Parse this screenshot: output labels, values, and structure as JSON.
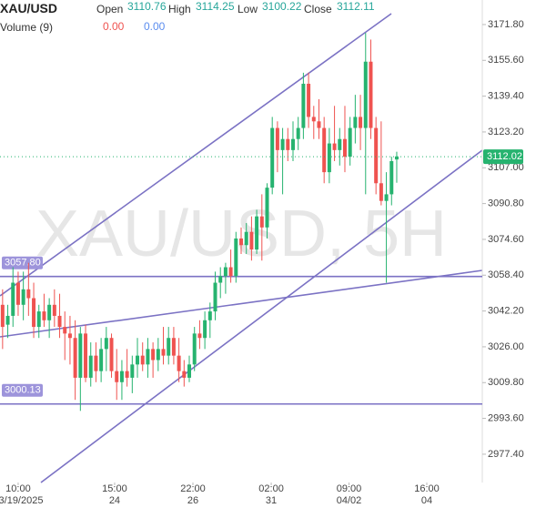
{
  "chart_data": {
    "type": "candlestick",
    "symbol": "XAU/USD",
    "watermark": "XAU/USD, 5H",
    "legend": {
      "open": "Open",
      "high": "High",
      "low": "Low",
      "close": "Close",
      "volume": "Volume (9)",
      "volume_values": [
        "0.00",
        "0.00"
      ]
    },
    "up_color": "#26b36f",
    "down_color": "#ef5350",
    "open": [
      3045,
      3036,
      3040,
      3055,
      3045,
      3052,
      3048,
      3035,
      3042,
      3038,
      3045,
      3040,
      3035,
      3032,
      3030,
      3012,
      3032,
      3012,
      3022,
      3015,
      3025,
      3030,
      3015,
      3010,
      3015,
      3012,
      3018,
      3022,
      3018,
      3025,
      3020,
      3025,
      3022,
      3030,
      3022,
      3015,
      3012,
      3018,
      3032,
      3030,
      3038,
      3042,
      3055,
      3058,
      3062,
      3058,
      3075,
      3072,
      3078,
      3070,
      3085,
      3080,
      3098,
      3125,
      3115,
      3120,
      3115,
      3120,
      3125,
      3145,
      3130,
      3128,
      3125,
      3105,
      3118,
      3115,
      3120,
      3112,
      3125,
      3130,
      3125,
      3155,
      3125,
      3100,
      3092,
      3095,
      3110.76
    ],
    "high": [
      3052,
      3045,
      3062,
      3060,
      3060,
      3064,
      3055,
      3045,
      3050,
      3048,
      3052,
      3050,
      3042,
      3040,
      3038,
      3035,
      3036,
      3028,
      3028,
      3030,
      3035,
      3032,
      3025,
      3020,
      3025,
      3022,
      3030,
      3028,
      3030,
      3028,
      3030,
      3035,
      3035,
      3035,
      3030,
      3020,
      3022,
      3035,
      3038,
      3042,
      3046,
      3060,
      3062,
      3064,
      3070,
      3078,
      3080,
      3082,
      3085,
      3088,
      3095,
      3100,
      3130,
      3128,
      3125,
      3125,
      3128,
      3130,
      3150,
      3150,
      3135,
      3138,
      3130,
      3125,
      3135,
      3125,
      3135,
      3130,
      3140,
      3140,
      3168,
      3165,
      3130,
      3128,
      3105,
      3112,
      3114.25
    ],
    "low": [
      3025,
      3030,
      3035,
      3040,
      3038,
      3040,
      3030,
      3030,
      3035,
      3030,
      3035,
      3030,
      3020,
      3018,
      3002,
      2997,
      3010,
      3008,
      3010,
      3010,
      3015,
      3012,
      3002,
      3002,
      3008,
      3005,
      3012,
      3015,
      3012,
      3012,
      3015,
      3018,
      3018,
      3018,
      3010,
      3008,
      3010,
      3015,
      3025,
      3025,
      3030,
      3038,
      3048,
      3050,
      3055,
      3055,
      3068,
      3068,
      3065,
      3068,
      3065,
      3075,
      3095,
      3105,
      3095,
      3110,
      3110,
      3115,
      3120,
      3125,
      3120,
      3120,
      3100,
      3100,
      3110,
      3108,
      3105,
      3108,
      3118,
      3115,
      3095,
      3120,
      3095,
      3090,
      3055,
      3090,
      3100.22
    ],
    "close": [
      3035,
      3040,
      3055,
      3045,
      3052,
      3048,
      3035,
      3042,
      3038,
      3045,
      3040,
      3035,
      3032,
      3030,
      3012,
      3032,
      3012,
      3022,
      3015,
      3025,
      3030,
      3015,
      3010,
      3015,
      3012,
      3018,
      3022,
      3018,
      3025,
      3020,
      3025,
      3022,
      3030,
      3022,
      3015,
      3012,
      3018,
      3032,
      3030,
      3038,
      3042,
      3055,
      3058,
      3062,
      3058,
      3075,
      3072,
      3078,
      3070,
      3085,
      3080,
      3098,
      3125,
      3115,
      3120,
      3115,
      3120,
      3125,
      3145,
      3130,
      3128,
      3125,
      3105,
      3118,
      3115,
      3120,
      3112,
      3125,
      3130,
      3125,
      3155,
      3125,
      3100,
      3092,
      3095,
      3110,
      3112.11
    ],
    "last_price": 3112.02,
    "hlines": [
      {
        "value": 3057.8,
        "label": "3057.80"
      },
      {
        "value": 3000.13,
        "label": "3000.13"
      }
    ],
    "xlim": [
      -0.5,
      92.5
    ],
    "xticks": [
      {
        "value": 3,
        "label": "10:00\n03/19/2025"
      },
      {
        "value": 21.6,
        "label": "15:00\n24"
      },
      {
        "value": 36.7,
        "label": "22:00\n26"
      },
      {
        "value": 51.8,
        "label": "02:00\n31"
      },
      {
        "value": 66.8,
        "label": "09:00\n04/02"
      },
      {
        "value": 81.8,
        "label": "16:00\n04"
      }
    ],
    "ylim": [
      2964.6,
      3182.9
    ],
    "yticks": [
      {
        "value": 3171.8,
        "label": "3171.80"
      },
      {
        "value": 3155.6,
        "label": "3155.60"
      },
      {
        "value": 3139.4,
        "label": "3139.40"
      },
      {
        "value": 3123.2,
        "label": "3123.20"
      },
      {
        "value": 3107,
        "label": "3107.00"
      },
      {
        "value": 3090.8,
        "label": "3090.80"
      },
      {
        "value": 3074.6,
        "label": "3074.60"
      },
      {
        "value": 3058.4,
        "label": "3058.40"
      },
      {
        "value": 3042.2,
        "label": "3042.20"
      },
      {
        "value": 3026,
        "label": "3026.00"
      },
      {
        "value": 3009.8,
        "label": "3009.80"
      },
      {
        "value": 2993.6,
        "label": "2993.60"
      },
      {
        "value": 2977.4,
        "label": "2977.40"
      }
    ]
  }
}
